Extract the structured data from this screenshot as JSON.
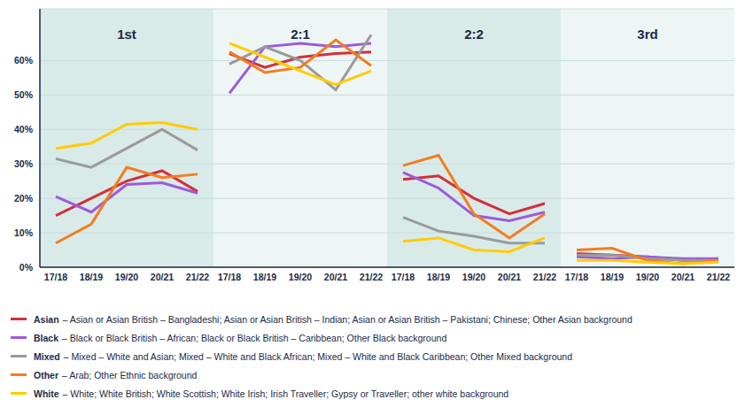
{
  "chart_data": [
    {
      "type": "line",
      "title": "1st",
      "categories": [
        "17/18",
        "18/19",
        "19/20",
        "20/21",
        "21/22"
      ],
      "ylim": [
        0,
        75
      ],
      "yticks": [
        {
          "value": 0,
          "label": "0%"
        },
        {
          "value": 10,
          "label": "10%"
        },
        {
          "value": 20,
          "label": "20%"
        },
        {
          "value": 30,
          "label": "30%"
        },
        {
          "value": 40,
          "label": "40%"
        },
        {
          "value": 50,
          "label": "50%"
        },
        {
          "value": 60,
          "label": "60%"
        }
      ],
      "grid": true,
      "series": [
        {
          "name": "Asian",
          "color": "#d42e3b",
          "values": [
            15,
            20,
            25,
            28,
            22
          ]
        },
        {
          "name": "Black",
          "color": "#9c5bdb",
          "values": [
            20.5,
            16,
            24,
            24.5,
            21.5
          ]
        },
        {
          "name": "Mixed",
          "color": "#9a9a9a",
          "values": [
            31.5,
            29,
            34.5,
            40,
            34
          ]
        },
        {
          "name": "Other",
          "color": "#f47c20",
          "values": [
            7,
            12.5,
            29,
            26,
            27
          ]
        },
        {
          "name": "White",
          "color": "#ffcc00",
          "values": [
            34.5,
            36,
            41.5,
            42,
            40
          ]
        }
      ]
    },
    {
      "type": "line",
      "title": "2:1",
      "categories": [
        "17/18",
        "18/19",
        "19/20",
        "20/21",
        "21/22"
      ],
      "ylim": [
        0,
        75
      ],
      "yticks": [
        {
          "value": 0,
          "label": "0%"
        },
        {
          "value": 10,
          "label": "10%"
        },
        {
          "value": 20,
          "label": "20%"
        },
        {
          "value": 30,
          "label": "30%"
        },
        {
          "value": 40,
          "label": "40%"
        },
        {
          "value": 50,
          "label": "50%"
        },
        {
          "value": 60,
          "label": "60%"
        }
      ],
      "grid": true,
      "tick_labels": "x",
      "series": [
        {
          "name": "Asian",
          "color": "#d42e3b",
          "values": [
            62,
            58,
            61,
            62,
            62.5
          ]
        },
        {
          "name": "Black",
          "color": "#9c5bdb",
          "values": [
            50.5,
            64,
            65,
            64,
            65
          ]
        },
        {
          "name": "Mixed",
          "color": "#9a9a9a",
          "values": [
            59,
            64,
            60,
            51.5,
            67.5
          ]
        },
        {
          "name": "Other",
          "color": "#f47c20",
          "values": [
            62.5,
            56.5,
            58,
            66,
            58.5
          ]
        },
        {
          "name": "White",
          "color": "#ffcc00",
          "values": [
            65,
            61,
            57,
            53,
            57
          ]
        }
      ]
    },
    {
      "type": "line",
      "title": "2:2",
      "categories": [
        "17/18",
        "18/19",
        "19/20",
        "20/21",
        "21/22"
      ],
      "ylim": [
        0,
        75
      ],
      "yticks": [
        {
          "value": 0,
          "label": "0%"
        },
        {
          "value": 10,
          "label": "10%"
        },
        {
          "value": 20,
          "label": "20%"
        },
        {
          "value": 30,
          "label": "30%"
        },
        {
          "value": 40,
          "label": "40%"
        },
        {
          "value": 50,
          "label": "50%"
        },
        {
          "value": 60,
          "label": "60%"
        }
      ],
      "grid": true,
      "tick_labels": "x",
      "series": [
        {
          "name": "Asian",
          "color": "#d42e3b",
          "values": [
            25.5,
            26.5,
            20,
            15.5,
            18.5
          ]
        },
        {
          "name": "Black",
          "color": "#9c5bdb",
          "values": [
            27.5,
            23,
            15,
            13.5,
            16
          ]
        },
        {
          "name": "Mixed",
          "color": "#9a9a9a",
          "values": [
            14.5,
            10.5,
            9,
            7,
            7
          ]
        },
        {
          "name": "Other",
          "color": "#f47c20",
          "values": [
            29.5,
            32.5,
            15.5,
            8.5,
            15.5
          ]
        },
        {
          "name": "White",
          "color": "#ffcc00",
          "values": [
            7.5,
            8.5,
            5,
            4.5,
            8.5
          ]
        }
      ]
    },
    {
      "type": "line",
      "title": "3rd",
      "categories": [
        "17/18",
        "18/19",
        "19/20",
        "20/21",
        "21/22"
      ],
      "ylim": [
        0,
        75
      ],
      "yticks": [
        {
          "value": 0,
          "label": "0%"
        },
        {
          "value": 10,
          "label": "10%"
        },
        {
          "value": 20,
          "label": "20%"
        },
        {
          "value": 30,
          "label": "30%"
        },
        {
          "value": 40,
          "label": "40%"
        },
        {
          "value": 50,
          "label": "50%"
        },
        {
          "value": 60,
          "label": "60%"
        }
      ],
      "grid": true,
      "tick_labels": "x",
      "series": [
        {
          "name": "Asian",
          "color": "#d42e3b",
          "values": [
            4,
            3.5,
            3,
            2,
            2.5
          ]
        },
        {
          "name": "Black",
          "color": "#9c5bdb",
          "values": [
            3,
            2.5,
            3,
            2.5,
            2.5
          ]
        },
        {
          "name": "Mixed",
          "color": "#9a9a9a",
          "values": [
            3.5,
            3.5,
            2.5,
            2,
            2
          ]
        },
        {
          "name": "Other",
          "color": "#f47c20",
          "values": [
            5,
            5.5,
            2,
            1,
            2
          ]
        },
        {
          "name": "White",
          "color": "#ffcc00",
          "values": [
            2,
            2,
            1.5,
            1,
            1.5
          ]
        }
      ]
    }
  ],
  "legend_descriptions": {
    "Asian": "– Asian or Asian British – Bangladeshi; Asian or Asian British – Indian; Asian or Asian British – Pakistani; Chinese; Other Asian background",
    "Black": "– Black or Black British – African; Black or Black British – Caribbean; Other Black background",
    "Mixed": "– Mixed – White and Asian; Mixed – White and Black African; Mixed – White and Black Caribbean; Other Mixed background",
    "Other": "– Arab; Other Ethnic background",
    "White": "– White; White British; White Scottish; White Irish; Irish Traveller; Gypsy or Traveller; other white background"
  }
}
